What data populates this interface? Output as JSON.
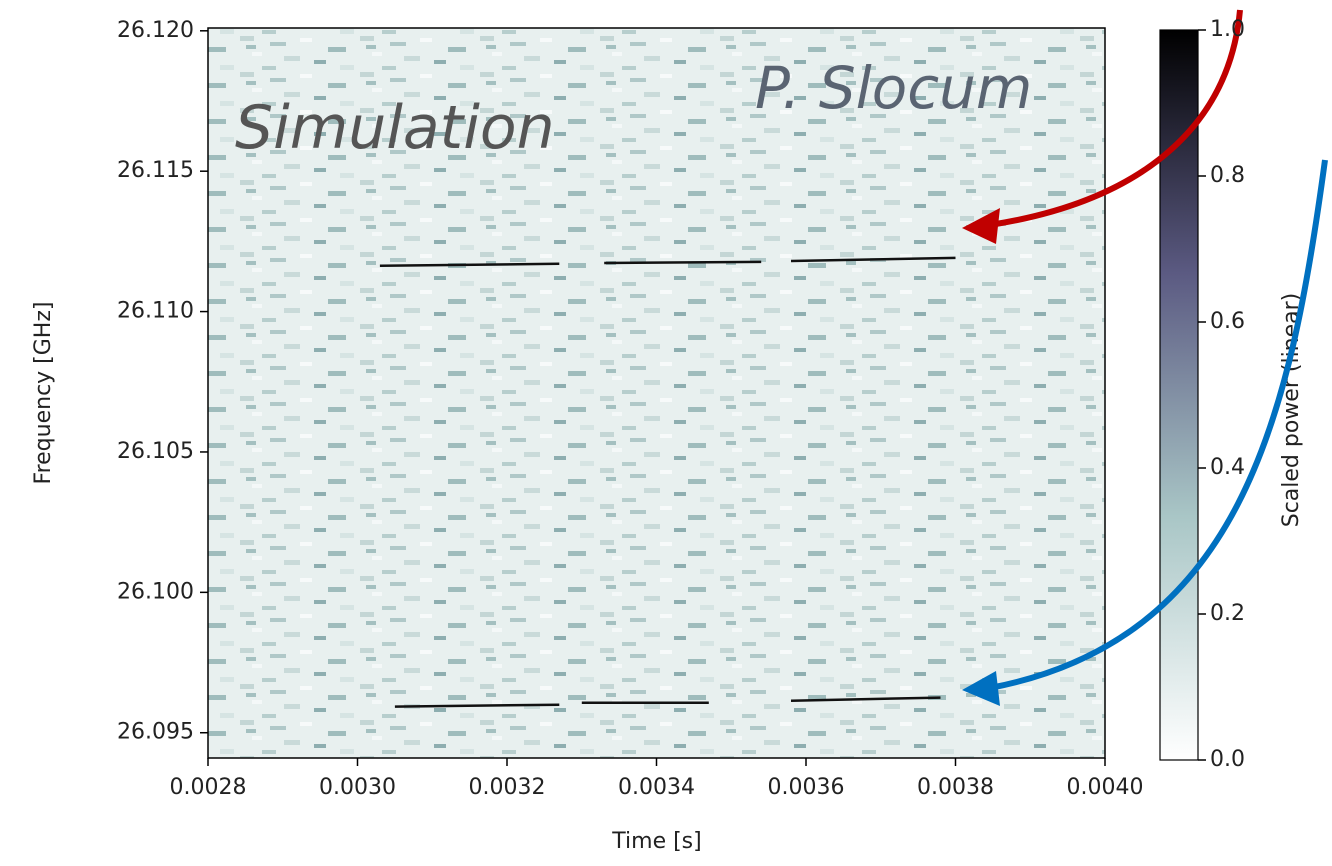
{
  "chart_data": {
    "type": "spectrogram",
    "xlabel": "Time [s]",
    "ylabel": "Frequency [GHz]",
    "colorbar_label": "Scaled power (linear)",
    "annotations": [
      "Simulation",
      "P. Slocum"
    ],
    "xlim": [
      0.0028,
      0.004
    ],
    "xticks": [
      0.0028,
      {
        "value": 0.003,
        "label": "0.0030"
      },
      0.0032,
      0.0034,
      0.0036,
      0.0038,
      {
        "value": 0.004,
        "label": "0.0040"
      }
    ],
    "ylim": [
      26.0941,
      26.1201
    ],
    "yticks": [
      26.095,
      {
        "value": 26.1,
        "label": "26.100"
      },
      26.105,
      {
        "value": 26.11,
        "label": "26.110"
      },
      26.115,
      {
        "value": 26.12,
        "label": "26.120"
      }
    ],
    "clim": [
      0,
      1
    ],
    "cticks": [
      {
        "value": 0,
        "label": "0.0"
      },
      0.2,
      0.4,
      0.6,
      0.8,
      {
        "value": 1,
        "label": "1.0"
      }
    ],
    "colormap": [
      "#ffffff",
      "#a9c6c6",
      "#5b5a82",
      "#000000"
    ],
    "tracks": [
      {
        "x": [
          0.00303,
          0.00327,
          null,
          0.00333,
          0.00354,
          null,
          0.00358,
          0.0038
        ],
        "values": [
          26.11163,
          26.1117,
          null,
          26.11173,
          26.11177,
          null,
          26.1118,
          26.11191
        ]
      },
      {
        "x": [
          0.00305,
          0.00327,
          null,
          0.0033,
          0.00347,
          null,
          0.00358,
          0.00378
        ],
        "values": [
          26.09593,
          26.096,
          null,
          26.09607,
          26.09607,
          null,
          26.09614,
          26.09625
        ]
      }
    ]
  }
}
